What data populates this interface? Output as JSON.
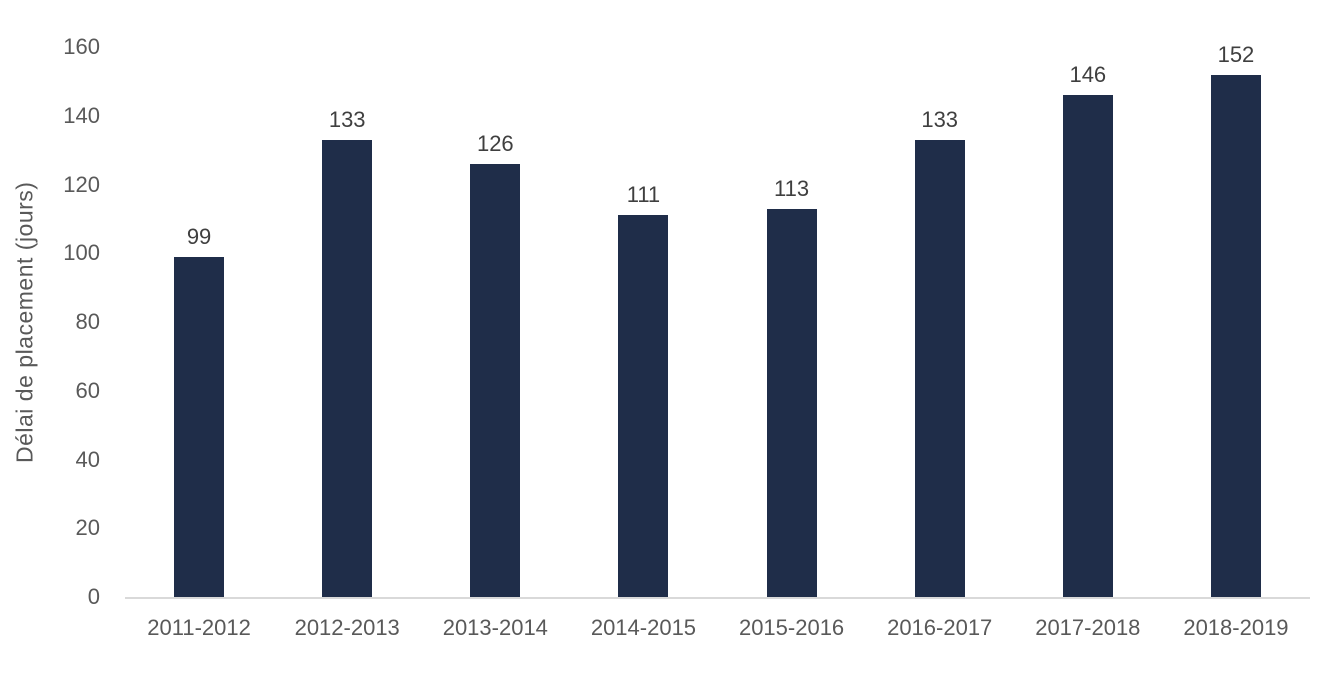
{
  "chart_data": {
    "type": "bar",
    "title": "",
    "categories": [
      "2011-2012",
      "2012-2013",
      "2013-2014",
      "2014-2015",
      "2015-2016",
      "2016-2017",
      "2017-2018",
      "2018-2019"
    ],
    "values": [
      99,
      133,
      126,
      111,
      113,
      133,
      146,
      152
    ],
    "xlabel": "",
    "ylabel": "Délai de placement (jours)",
    "ylim": [
      0,
      160
    ],
    "yticks": [
      0,
      20,
      40,
      60,
      80,
      100,
      120,
      140,
      160
    ],
    "grid": false,
    "legend": false,
    "data_labels_shown": true,
    "colors": {
      "bar_fill": "#1F2D49",
      "axis_line": "#D9D9D9",
      "tick_label": "#595959",
      "data_label": "#3F3F3F",
      "background": "#FFFFFF"
    }
  }
}
